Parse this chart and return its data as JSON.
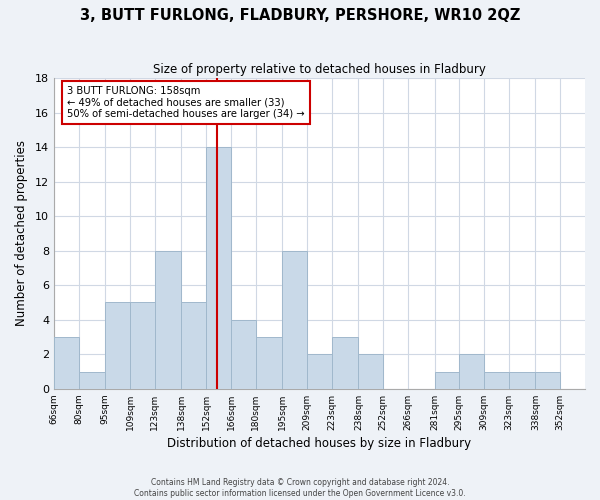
{
  "title": "3, BUTT FURLONG, FLADBURY, PERSHORE, WR10 2QZ",
  "subtitle": "Size of property relative to detached houses in Fladbury",
  "xlabel": "Distribution of detached houses by size in Fladbury",
  "ylabel": "Number of detached properties",
  "footer_lines": [
    "Contains HM Land Registry data © Crown copyright and database right 2024.",
    "Contains public sector information licensed under the Open Government Licence v3.0."
  ],
  "bin_labels": [
    "66sqm",
    "80sqm",
    "95sqm",
    "109sqm",
    "123sqm",
    "138sqm",
    "152sqm",
    "166sqm",
    "180sqm",
    "195sqm",
    "209sqm",
    "223sqm",
    "238sqm",
    "252sqm",
    "266sqm",
    "281sqm",
    "295sqm",
    "309sqm",
    "323sqm",
    "338sqm",
    "352sqm"
  ],
  "bin_edges": [
    66,
    80,
    95,
    109,
    123,
    138,
    152,
    166,
    180,
    195,
    209,
    223,
    238,
    252,
    266,
    281,
    295,
    309,
    323,
    338,
    352
  ],
  "counts": [
    3,
    1,
    5,
    5,
    8,
    5,
    14,
    4,
    3,
    8,
    2,
    3,
    2,
    0,
    0,
    1,
    2,
    1,
    1,
    1,
    0
  ],
  "bar_color": "#c9d9e8",
  "bar_edge_color": "#a0b8cc",
  "vline_color": "#cc0000",
  "vline_x": 158,
  "ylim": [
    0,
    18
  ],
  "yticks": [
    0,
    2,
    4,
    6,
    8,
    10,
    12,
    14,
    16,
    18
  ],
  "background_color": "#eef2f7",
  "plot_background": "#ffffff",
  "grid_color": "#d0d8e4",
  "annotation_box_facecolor": "#ffffff",
  "annotation_box_edgecolor": "#cc0000",
  "property_label": "3 BUTT FURLONG: 158sqm",
  "annotation_line1": "← 49% of detached houses are smaller (33)",
  "annotation_line2": "50% of semi-detached houses are larger (34) →"
}
